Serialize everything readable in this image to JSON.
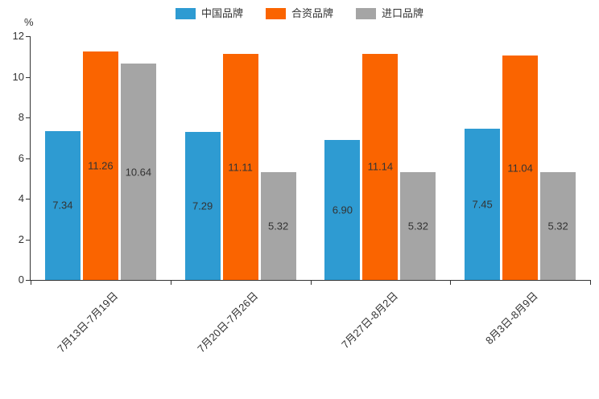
{
  "chart_data": {
    "type": "bar",
    "title": "",
    "xlabel": "",
    "ylabel": "%",
    "ylim": [
      0,
      12
    ],
    "yticks": [
      0,
      2,
      4,
      6,
      8,
      10,
      12
    ],
    "grid": false,
    "legend_position": "top",
    "categories": [
      "7月13日-7月19日",
      "7月20日-7月26日",
      "7月27日-8月2日",
      "8月3日-8月9日"
    ],
    "series": [
      {
        "name": "中国品牌",
        "color": "#2E9BD2",
        "values": [
          7.34,
          7.29,
          6.9,
          7.45
        ]
      },
      {
        "name": "合资品牌",
        "color": "#FA6400",
        "values": [
          11.26,
          11.11,
          11.14,
          11.04
        ]
      },
      {
        "name": "进口品牌",
        "color": "#A5A5A5",
        "values": [
          10.64,
          5.32,
          5.32,
          5.32
        ]
      }
    ],
    "value_label_decimals": 2
  }
}
